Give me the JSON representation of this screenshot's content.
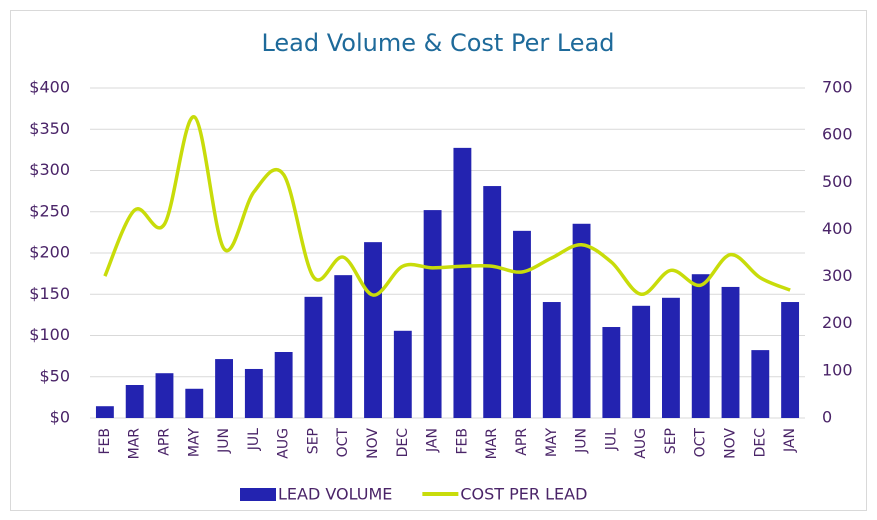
{
  "chart_data": {
    "type": "bar_line",
    "title": "Lead Volume & Cost Per Lead",
    "categories": [
      "FEB",
      "MAR",
      "APR",
      "MAY",
      "JUN",
      "JUL",
      "AUG",
      "SEP",
      "OCT",
      "NOV",
      "DEC",
      "JAN",
      "FEB",
      "MAR",
      "APR",
      "MAY",
      "JUN",
      "JUL",
      "AUG",
      "SEP",
      "OCT",
      "NOV",
      "DEC",
      "JAN"
    ],
    "series": [
      {
        "name": "LEAD VOLUME",
        "type": "bar",
        "axis": "y2",
        "color": "#2323b0",
        "values": [
          25,
          70,
          95,
          62,
          125,
          104,
          140,
          257,
          303,
          373,
          185,
          441,
          573,
          492,
          397,
          246,
          412,
          193,
          238,
          255,
          305,
          278,
          144,
          246
        ]
      },
      {
        "name": "COST PER LEAD",
        "type": "line",
        "axis": "y",
        "color": "#c8dc0a",
        "values": [
          172,
          252,
          235,
          365,
          205,
          274,
          295,
          171,
          195,
          149,
          184,
          182,
          184,
          184,
          177,
          194,
          210,
          189,
          150,
          179,
          161,
          198,
          170,
          155
        ]
      }
    ],
    "ylim": [
      0,
      400
    ],
    "yticks": [
      {
        "value": 0,
        "label": "$0"
      },
      {
        "value": 50,
        "label": "$50"
      },
      {
        "value": 100,
        "label": "$100"
      },
      {
        "value": 150,
        "label": "$150"
      },
      {
        "value": 200,
        "label": "$200"
      },
      {
        "value": 250,
        "label": "$250"
      },
      {
        "value": 300,
        "label": "$300"
      },
      {
        "value": 350,
        "label": "$350"
      },
      {
        "value": 400,
        "label": "$400"
      }
    ],
    "y2lim": [
      0,
      700
    ],
    "y2ticks": [
      0,
      100,
      200,
      300,
      400,
      500,
      600,
      700
    ],
    "grid": true,
    "legend": "bottom"
  }
}
